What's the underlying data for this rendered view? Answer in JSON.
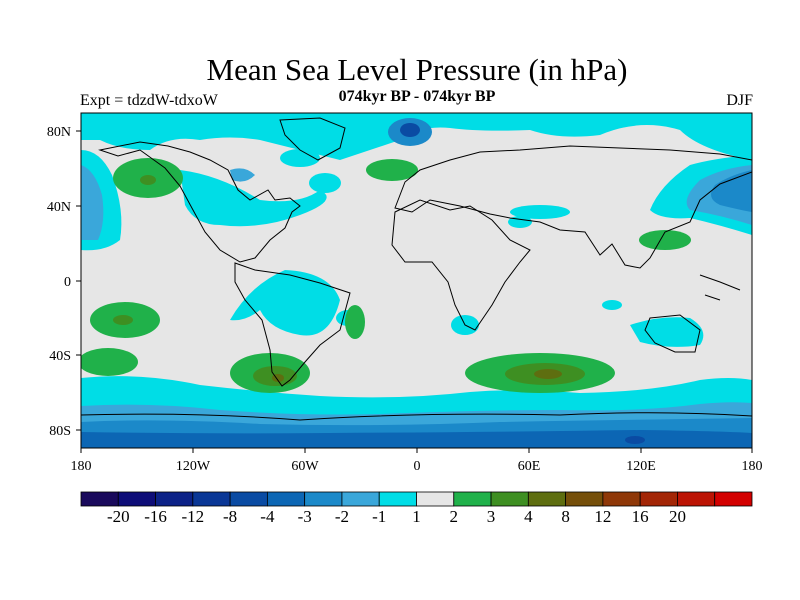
{
  "title": "Mean Sea Level Pressure (in hPa)",
  "subtitle": "074kyr BP - 074kyr BP",
  "experiment_label": "Expt = tdzdW-tdxoW",
  "season_label": "DJF",
  "map": {
    "lon_ticks": [
      "180",
      "120W",
      "60W",
      "0",
      "60E",
      "120E",
      "180"
    ],
    "lat_ticks": [
      "80N",
      "40N",
      "0",
      "40S",
      "80S"
    ]
  },
  "colorbar": {
    "colors": [
      "#1a0a5c",
      "#0e0d78",
      "#0c2287",
      "#0a3796",
      "#0a4ba3",
      "#0c66b4",
      "#1b89c9",
      "#3aa7da",
      "#00dde6",
      "#e6e6e6",
      "#20b14a",
      "#3e8f22",
      "#5e6e10",
      "#754f0a",
      "#8f3808",
      "#a32606",
      "#bc1404",
      "#d30000"
    ],
    "labels": [
      "-20",
      "-16",
      "-12",
      "-8",
      "-4",
      "-3",
      "-2",
      "-1",
      "1",
      "2",
      "3",
      "4",
      "8",
      "12",
      "16",
      "20"
    ]
  }
}
